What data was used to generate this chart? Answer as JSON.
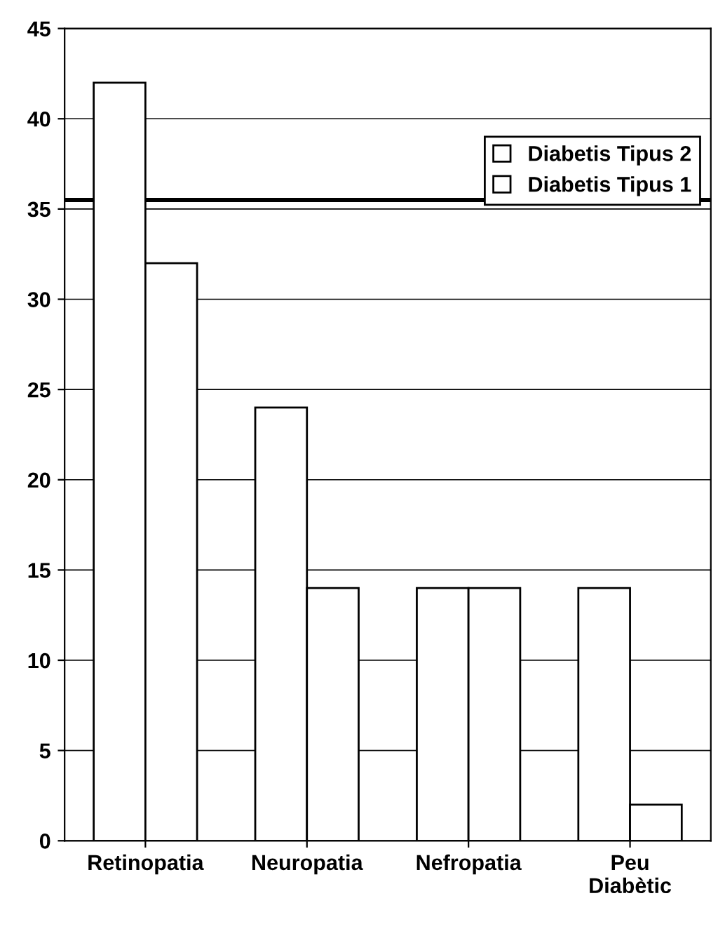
{
  "chart_data": {
    "type": "bar",
    "categories": [
      "Retinopatia",
      "Neuropatia",
      "Nefropatia",
      "Peu\nDiabètic"
    ],
    "series": [
      {
        "name": "Diabetis Tipus 2",
        "color": "#ffffff",
        "values": [
          42,
          24,
          14,
          14
        ]
      },
      {
        "name": "Diabetis Tipus 1",
        "color": "#ffffff",
        "values": [
          32,
          14,
          14,
          2
        ]
      }
    ],
    "ylim": [
      0,
      45
    ],
    "yticks": [
      0,
      5,
      10,
      15,
      20,
      25,
      30,
      35,
      40,
      45
    ],
    "grid": "y",
    "legend": "top right",
    "ref_lines": [
      {
        "axis": "y",
        "value": 35.5,
        "color": "#000000"
      }
    ]
  }
}
